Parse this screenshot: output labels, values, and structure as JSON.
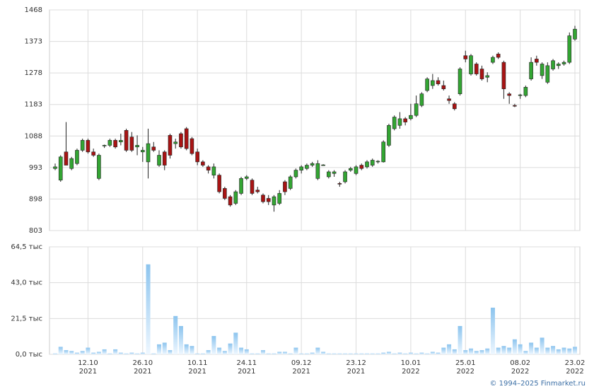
{
  "chart_data": {
    "type": "candlestick",
    "categories": [
      null,
      null,
      null,
      null,
      null,
      null,
      {
        "date": "12.10",
        "year": "2021"
      },
      null,
      null,
      null,
      null,
      null,
      null,
      null,
      null,
      null,
      {
        "date": "26.10",
        "year": "2021"
      },
      null,
      null,
      null,
      null,
      null,
      null,
      null,
      null,
      null,
      {
        "date": "10.11",
        "year": "2021"
      },
      null,
      null,
      null,
      null,
      null,
      null,
      null,
      null,
      {
        "date": "24.11",
        "year": "2021"
      },
      null,
      null,
      null,
      null,
      null,
      null,
      null,
      null,
      null,
      {
        "date": "09.12",
        "year": "2021"
      },
      null,
      null,
      null,
      null,
      null,
      null,
      null,
      null,
      null,
      {
        "date": "23.12",
        "year": "2021"
      },
      null,
      null,
      null,
      null,
      null,
      null,
      null,
      null,
      null,
      {
        "date": "10.01",
        "year": "2022"
      },
      null,
      null,
      null,
      null,
      null,
      null,
      null,
      null,
      null,
      {
        "date": "25.01",
        "year": "2022"
      },
      null,
      null,
      null,
      null,
      null,
      null,
      null,
      null,
      null,
      {
        "date": "08.02",
        "year": "2022"
      },
      null,
      null,
      null,
      null,
      null,
      null,
      null,
      null,
      null,
      {
        "date": "23.02",
        "year": "2022"
      }
    ],
    "open": [
      990,
      955,
      1040,
      990,
      1005,
      1045,
      1075,
      1040,
      960,
      1058,
      1060,
      1075,
      1070,
      1105,
      1085,
      1055,
      1040,
      1010,
      1055,
      1000,
      1040,
      1090,
      1065,
      1095,
      1110,
      1080,
      1040,
      1010,
      995,
      970,
      970,
      930,
      905,
      885,
      915,
      960,
      955,
      925,
      910,
      900,
      880,
      885,
      950,
      930,
      965,
      985,
      990,
      1000,
      960,
      1000,
      965,
      975,
      945,
      950,
      985,
      975,
      1000,
      995,
      1000,
      1010,
      1010,
      1060,
      1110,
      1120,
      1140,
      1140,
      1150,
      1180,
      1225,
      1240,
      1255,
      1240,
      1200,
      1185,
      1215,
      1330,
      1275,
      1305,
      1290,
      1265,
      1310,
      1335,
      1310,
      1215,
      1180,
      1210,
      1210,
      1260,
      1320,
      1270,
      1250,
      1290,
      1300,
      1305,
      1310,
      1380
    ],
    "high": [
      1005,
      1030,
      1130,
      1025,
      1050,
      1080,
      1080,
      1050,
      1035,
      1062,
      1080,
      1080,
      1095,
      1110,
      1100,
      1090,
      1055,
      1110,
      1070,
      1045,
      1045,
      1095,
      1080,
      1100,
      1115,
      1085,
      1050,
      1015,
      1000,
      1005,
      975,
      935,
      910,
      925,
      965,
      970,
      960,
      935,
      915,
      910,
      910,
      925,
      955,
      970,
      990,
      1000,
      1005,
      1010,
      1015,
      1003,
      985,
      985,
      950,
      985,
      995,
      1000,
      1005,
      1015,
      1020,
      1015,
      1075,
      1125,
      1150,
      1160,
      1145,
      1185,
      1210,
      1220,
      1265,
      1275,
      1265,
      1255,
      1210,
      1190,
      1295,
      1345,
      1335,
      1310,
      1300,
      1280,
      1330,
      1340,
      1315,
      1220,
      1185,
      1215,
      1240,
      1325,
      1330,
      1310,
      1310,
      1320,
      1310,
      1315,
      1400,
      1420
    ],
    "low": [
      985,
      950,
      1000,
      985,
      1000,
      1040,
      1035,
      1025,
      955,
      1052,
      1055,
      1050,
      1060,
      1040,
      1040,
      1030,
      1010,
      960,
      1040,
      995,
      985,
      1020,
      1050,
      1050,
      1045,
      1030,
      1000,
      995,
      975,
      960,
      915,
      895,
      875,
      880,
      910,
      955,
      910,
      915,
      885,
      880,
      860,
      880,
      910,
      925,
      960,
      975,
      985,
      995,
      955,
      998,
      960,
      965,
      935,
      945,
      980,
      970,
      985,
      990,
      995,
      1005,
      1008,
      1055,
      1105,
      1110,
      1120,
      1135,
      1145,
      1175,
      1220,
      1230,
      1240,
      1225,
      1185,
      1165,
      1210,
      1310,
      1270,
      1270,
      1255,
      1250,
      1305,
      1320,
      1200,
      1185,
      1175,
      1200,
      1205,
      1255,
      1300,
      1260,
      1245,
      1285,
      1290,
      1300,
      1305,
      1375
    ],
    "close": [
      995,
      1025,
      1000,
      1020,
      1045,
      1075,
      1040,
      1030,
      1030,
      1060,
      1075,
      1055,
      1075,
      1045,
      1045,
      1060,
      1045,
      1065,
      1045,
      1030,
      1000,
      1030,
      1070,
      1055,
      1050,
      1035,
      1010,
      1000,
      985,
      995,
      920,
      900,
      880,
      920,
      960,
      965,
      915,
      920,
      890,
      890,
      905,
      915,
      920,
      965,
      985,
      995,
      1000,
      1005,
      1005,
      1001,
      980,
      980,
      943,
      980,
      990,
      995,
      990,
      1010,
      1015,
      1012,
      1070,
      1120,
      1145,
      1140,
      1130,
      1150,
      1185,
      1215,
      1260,
      1255,
      1245,
      1230,
      1195,
      1170,
      1290,
      1320,
      1330,
      1275,
      1260,
      1270,
      1325,
      1325,
      1230,
      1210,
      1178,
      1212,
      1235,
      1310,
      1310,
      1305,
      1300,
      1315,
      1305,
      1310,
      1390,
      1410
    ],
    "volume": [
      0.5,
      4.5,
      2.5,
      2,
      1,
      2,
      4,
      1,
      1.5,
      3,
      0.5,
      3,
      1,
      0.5,
      1,
      0.5,
      1,
      54,
      0.5,
      6,
      7,
      2.5,
      23,
      17,
      6,
      5,
      0.5,
      0.5,
      2.5,
      11,
      4,
      2,
      6.5,
      13,
      4,
      3,
      0.5,
      0.5,
      2.5,
      0.5,
      0.5,
      1.5,
      1.5,
      0.5,
      4,
      0.5,
      0.5,
      1,
      4,
      1.5,
      0.5,
      0.5,
      0.5,
      0.5,
      0.5,
      0.5,
      0.5,
      0.5,
      0.5,
      0.5,
      1,
      1.5,
      0.5,
      1,
      0.5,
      1,
      0.5,
      1,
      0.5,
      1.5,
      1,
      4,
      6,
      3,
      17,
      2.5,
      3.5,
      2,
      2.5,
      3.5,
      28,
      4,
      5,
      4,
      9,
      6,
      2,
      7,
      4,
      10,
      4,
      5,
      3,
      4,
      3.5,
      4.5
    ],
    "up_color": "#33a533",
    "down_color": "#a81414",
    "volume_color": "#8cc4ee",
    "ylim": [
      803,
      1468
    ],
    "yticks": [
      803,
      898,
      993,
      1088,
      1183,
      1278,
      1373,
      1468
    ],
    "y2lim": [
      0,
      64.5
    ],
    "y2ticks": [
      {
        "value": 0,
        "label": "0,0 тыс"
      },
      {
        "value": 21.5,
        "label": "21,5 тыс"
      },
      {
        "value": 43,
        "label": "43,0 тыс"
      },
      {
        "value": 64.5,
        "label": "64,5 тыс"
      }
    ],
    "grid": true
  },
  "footer": "© 1994–2025 Finmarket.ru"
}
